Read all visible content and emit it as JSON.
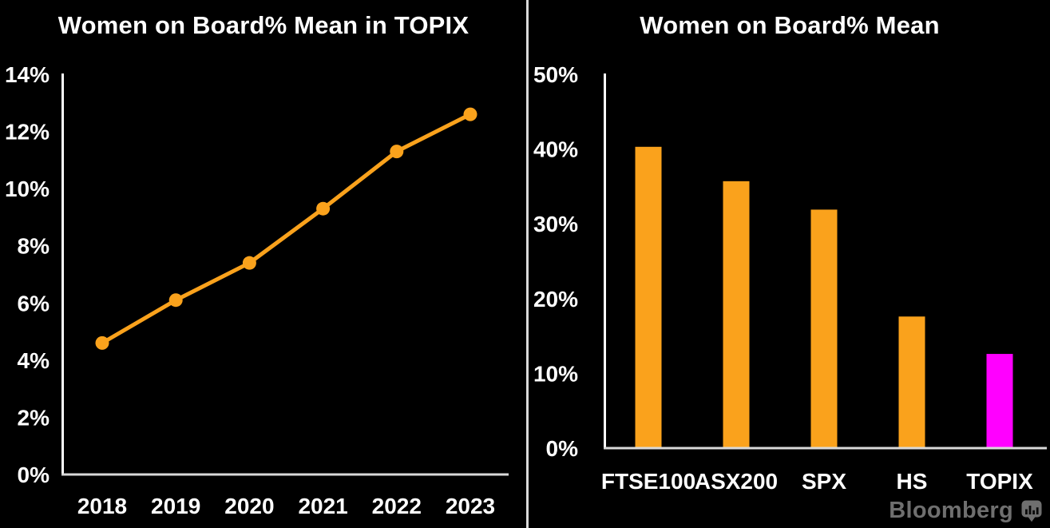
{
  "page": {
    "background": "#000000"
  },
  "chart_data": [
    {
      "type": "line",
      "title": "Women on Board% Mean in TOPIX",
      "categories": [
        "2018",
        "2019",
        "2020",
        "2021",
        "2022",
        "2023"
      ],
      "values": [
        4.6,
        6.1,
        7.4,
        9.3,
        11.3,
        12.6
      ],
      "unit": "%",
      "xlabel": "",
      "ylabel": "",
      "ylim": [
        0,
        14
      ],
      "ytick_step": 2,
      "ytick_labels": [
        "0%",
        "2%",
        "4%",
        "6%",
        "8%",
        "10%",
        "12%",
        "14%"
      ],
      "line_color": "#FAA21C",
      "marker": "circle",
      "grid": false,
      "legend": "none"
    },
    {
      "type": "bar",
      "title": "Women on Board% Mean",
      "categories": [
        "FTSE100",
        "ASX200",
        "SPX",
        "HS",
        "TOPIX"
      ],
      "values": [
        40.3,
        35.7,
        31.9,
        17.6,
        12.6
      ],
      "unit": "%",
      "xlabel": "",
      "ylabel": "",
      "ylim": [
        0,
        50
      ],
      "ytick_step": 10,
      "ytick_labels": [
        "0%",
        "10%",
        "20%",
        "30%",
        "40%",
        "50%"
      ],
      "bar_colors": [
        "#FAA21C",
        "#FAA21C",
        "#FAA21C",
        "#FAA21C",
        "#FF00FF"
      ],
      "highlight_category": "TOPIX",
      "grid": false,
      "legend": "none"
    }
  ],
  "branding": {
    "label": "Bloomberg",
    "icon": "bar-chart-bubble-icon",
    "color": "#6F6F6F"
  },
  "colors": {
    "background": "#000000",
    "text": "#FFFFFF",
    "y_axis_line": "#FFFFFF",
    "x_axis_line": "#D9D9D9",
    "divider": "#D9D9D9",
    "orange": "#FAA21C",
    "magenta": "#FF00FF",
    "branding_gray": "#6F6F6F"
  }
}
